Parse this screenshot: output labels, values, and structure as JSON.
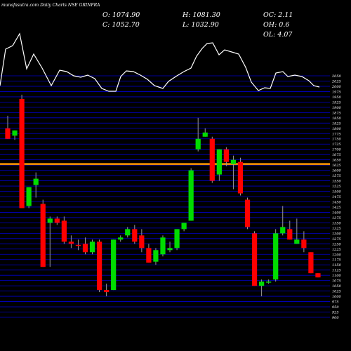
{
  "header": {
    "watermark": "munafasutra.com",
    "title": "Daily Charts NSE GRINFRA"
  },
  "ohlc": {
    "open": "O: 1074.90",
    "high": "H: 1081.30",
    "oc": "OC: 2.11",
    "close": "C: 1052.70",
    "low": "L: 1032.90",
    "oh": "OH: 0.6",
    "ol": "OL: 4.07"
  },
  "chart_data": {
    "type": "candlestick",
    "symbol": "NSE GRINFRA",
    "y_axis_ticks": [
      "900",
      "925",
      "950",
      "975",
      "1000",
      "1025",
      "1050",
      "1075",
      "1100",
      "1125",
      "1150",
      "1175",
      "1200",
      "1225",
      "1250",
      "1275",
      "1300",
      "1325",
      "1350",
      "1375",
      "1400",
      "1425",
      "1450",
      "1475",
      "1500",
      "1525",
      "1550",
      "1575",
      "1600",
      "1625",
      "1650",
      "1675",
      "1700",
      "1725",
      "1750",
      "1775",
      "1800",
      "1825",
      "1850",
      "1875",
      "1900",
      "1925",
      "1950",
      "1975",
      "2000",
      "2025",
      "2050"
    ],
    "ylim": [
      900,
      2050
    ],
    "reference_line": 1630,
    "colors": {
      "up": "#00dd00",
      "down": "#ff0000",
      "wick": "#999999",
      "reference": "#ff9900",
      "grid": "#0000cc",
      "overlay": "#ffffff"
    },
    "candles": [
      {
        "o": 1800,
        "h": 1860,
        "l": 1750,
        "c": 1750
      },
      {
        "o": 1765,
        "h": 1790,
        "l": 1745,
        "c": 1790
      },
      {
        "o": 1940,
        "h": 1960,
        "l": 1420,
        "c": 1420
      },
      {
        "o": 1430,
        "h": 1520,
        "l": 1420,
        "c": 1520
      },
      {
        "o": 1530,
        "h": 1590,
        "l": 1470,
        "c": 1560
      },
      {
        "o": 1440,
        "h": 1460,
        "l": 1140,
        "c": 1140
      },
      {
        "o": 1350,
        "h": 1380,
        "l": 1140,
        "c": 1370
      },
      {
        "o": 1370,
        "h": 1380,
        "l": 1340,
        "c": 1350
      },
      {
        "o": 1360,
        "h": 1380,
        "l": 1250,
        "c": 1260
      },
      {
        "o": 1260,
        "h": 1290,
        "l": 1230,
        "c": 1250
      },
      {
        "o": 1245,
        "h": 1270,
        "l": 1220,
        "c": 1240
      },
      {
        "o": 1250,
        "h": 1280,
        "l": 1200,
        "c": 1210
      },
      {
        "o": 1210,
        "h": 1270,
        "l": 1200,
        "c": 1260
      },
      {
        "o": 1260,
        "h": 1270,
        "l": 1020,
        "c": 1030
      },
      {
        "o": 1030,
        "h": 1060,
        "l": 1000,
        "c": 1020
      },
      {
        "o": 1030,
        "h": 1270,
        "l": 1030,
        "c": 1270
      },
      {
        "o": 1270,
        "h": 1290,
        "l": 1260,
        "c": 1280
      },
      {
        "o": 1290,
        "h": 1330,
        "l": 1280,
        "c": 1320
      },
      {
        "o": 1320,
        "h": 1340,
        "l": 1250,
        "c": 1260
      },
      {
        "o": 1290,
        "h": 1320,
        "l": 1210,
        "c": 1230
      },
      {
        "o": 1230,
        "h": 1250,
        "l": 1160,
        "c": 1160
      },
      {
        "o": 1165,
        "h": 1230,
        "l": 1150,
        "c": 1220
      },
      {
        "o": 1200,
        "h": 1290,
        "l": 1190,
        "c": 1280
      },
      {
        "o": 1220,
        "h": 1260,
        "l": 1210,
        "c": 1230
      },
      {
        "o": 1230,
        "h": 1320,
        "l": 1220,
        "c": 1320
      },
      {
        "o": 1320,
        "h": 1350,
        "l": 1310,
        "c": 1350
      },
      {
        "o": 1360,
        "h": 1610,
        "l": 1360,
        "c": 1600
      },
      {
        "o": 1700,
        "h": 1850,
        "l": 1690,
        "c": 1750
      },
      {
        "o": 1760,
        "h": 1800,
        "l": 1770,
        "c": 1780
      },
      {
        "o": 1750,
        "h": 1760,
        "l": 1540,
        "c": 1550
      },
      {
        "o": 1580,
        "h": 1700,
        "l": 1550,
        "c": 1700
      },
      {
        "o": 1700,
        "h": 1710,
        "l": 1620,
        "c": 1640
      },
      {
        "o": 1630,
        "h": 1670,
        "l": 1510,
        "c": 1650
      },
      {
        "o": 1640,
        "h": 1660,
        "l": 1480,
        "c": 1490
      },
      {
        "o": 1460,
        "h": 1470,
        "l": 1320,
        "c": 1330
      },
      {
        "o": 1300,
        "h": 1310,
        "l": 1050,
        "c": 1050
      },
      {
        "o": 1050,
        "h": 1080,
        "l": 1000,
        "c": 1070
      },
      {
        "o": 1070,
        "h": 1080,
        "l": 1060,
        "c": 1070
      },
      {
        "o": 1080,
        "h": 1320,
        "l": 1070,
        "c": 1300
      },
      {
        "o": 1300,
        "h": 1430,
        "l": 1290,
        "c": 1330
      },
      {
        "o": 1320,
        "h": 1360,
        "l": 1270,
        "c": 1270
      },
      {
        "o": 1250,
        "h": 1370,
        "l": 1250,
        "c": 1270
      },
      {
        "o": 1270,
        "h": 1310,
        "l": 1210,
        "c": 1230
      },
      {
        "o": 1210,
        "h": 1210,
        "l": 1110,
        "c": 1110
      },
      {
        "o": 1110,
        "h": 1100,
        "l": 1090,
        "c": 1090
      }
    ],
    "overlay_line": [
      {
        "x": 0,
        "y": 122
      },
      {
        "x": 8,
        "y": 70
      },
      {
        "x": 18,
        "y": 65
      },
      {
        "x": 28,
        "y": 48
      },
      {
        "x": 38,
        "y": 98
      },
      {
        "x": 48,
        "y": 77
      },
      {
        "x": 60,
        "y": 97
      },
      {
        "x": 73,
        "y": 122
      },
      {
        "x": 85,
        "y": 100
      },
      {
        "x": 95,
        "y": 102
      },
      {
        "x": 105,
        "y": 108
      },
      {
        "x": 115,
        "y": 110
      },
      {
        "x": 125,
        "y": 107
      },
      {
        "x": 135,
        "y": 112
      },
      {
        "x": 145,
        "y": 126
      },
      {
        "x": 155,
        "y": 130
      },
      {
        "x": 165,
        "y": 130
      },
      {
        "x": 172,
        "y": 109
      },
      {
        "x": 180,
        "y": 101
      },
      {
        "x": 190,
        "y": 102
      },
      {
        "x": 200,
        "y": 107
      },
      {
        "x": 210,
        "y": 113
      },
      {
        "x": 220,
        "y": 122
      },
      {
        "x": 232,
        "y": 126
      },
      {
        "x": 240,
        "y": 116
      },
      {
        "x": 252,
        "y": 108
      },
      {
        "x": 262,
        "y": 102
      },
      {
        "x": 272,
        "y": 97
      },
      {
        "x": 280,
        "y": 80
      },
      {
        "x": 288,
        "y": 69
      },
      {
        "x": 295,
        "y": 62
      },
      {
        "x": 303,
        "y": 61
      },
      {
        "x": 312,
        "y": 78
      },
      {
        "x": 320,
        "y": 71
      },
      {
        "x": 330,
        "y": 74
      },
      {
        "x": 340,
        "y": 77
      },
      {
        "x": 350,
        "y": 96
      },
      {
        "x": 358,
        "y": 117
      },
      {
        "x": 368,
        "y": 129
      },
      {
        "x": 377,
        "y": 125
      },
      {
        "x": 385,
        "y": 126
      },
      {
        "x": 393,
        "y": 104
      },
      {
        "x": 403,
        "y": 102
      },
      {
        "x": 410,
        "y": 109
      },
      {
        "x": 420,
        "y": 107
      },
      {
        "x": 430,
        "y": 109
      },
      {
        "x": 440,
        "y": 115
      },
      {
        "x": 447,
        "y": 122
      },
      {
        "x": 455,
        "y": 124
      }
    ]
  }
}
